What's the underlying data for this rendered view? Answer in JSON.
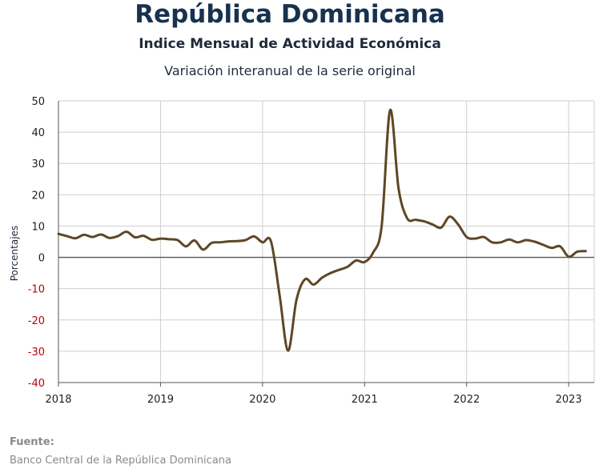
{
  "header": {
    "title": "República Dominicana",
    "subtitle": "Indice Mensual de  Actividad Económica",
    "subsubtitle": "Variación interanual de la serie original"
  },
  "source": {
    "label": "Fuente:",
    "text": "Banco Central de la República Dominicana"
  },
  "colors": {
    "line": "#5e4725",
    "grid": "#cfcfcf",
    "zero_line": "#555555",
    "negative_tick": "#c00000",
    "text": "#1f2a3a"
  },
  "chart_data": {
    "type": "line",
    "title": "Variación interanual de la serie original",
    "xlabel": "",
    "ylabel": "Porcentajes",
    "ylim": [
      -40,
      50
    ],
    "xlim": [
      2018.0,
      2023.25
    ],
    "yticks": [
      "50",
      "40",
      "30",
      "20",
      "10",
      "0",
      "-10",
      "-20",
      "-30",
      "-40"
    ],
    "xticks": [
      "2018",
      "2019",
      "2020",
      "2021",
      "2022",
      "2023"
    ],
    "grid": true,
    "series": [
      {
        "name": "",
        "x": [
          2018.0,
          2018.083,
          2018.167,
          2018.25,
          2018.333,
          2018.417,
          2018.5,
          2018.583,
          2018.667,
          2018.75,
          2018.833,
          2018.917,
          2019.0,
          2019.083,
          2019.167,
          2019.25,
          2019.333,
          2019.417,
          2019.5,
          2019.583,
          2019.667,
          2019.75,
          2019.833,
          2019.917,
          2020.0,
          2020.083,
          2020.167,
          2020.25,
          2020.333,
          2020.417,
          2020.5,
          2020.583,
          2020.667,
          2020.75,
          2020.833,
          2020.917,
          2021.0,
          2021.083,
          2021.167,
          2021.25,
          2021.333,
          2021.417,
          2021.5,
          2021.583,
          2021.667,
          2021.75,
          2021.833,
          2021.917,
          2022.0,
          2022.083,
          2022.167,
          2022.25,
          2022.333,
          2022.417,
          2022.5,
          2022.583,
          2022.667,
          2022.75,
          2022.833,
          2022.917,
          2023.0,
          2023.083,
          2023.167
        ],
        "values": [
          7.5,
          6.8,
          6.1,
          7.2,
          6.5,
          7.3,
          6.2,
          6.8,
          8.2,
          6.4,
          6.9,
          5.6,
          6.0,
          5.8,
          5.5,
          3.5,
          5.4,
          2.5,
          4.6,
          4.8,
          5.1,
          5.2,
          5.5,
          6.7,
          4.8,
          5.1,
          -12.0,
          -29.8,
          -13.5,
          -7.0,
          -8.7,
          -6.5,
          -5.0,
          -4.0,
          -3.0,
          -1.0,
          -1.5,
          1.5,
          10.0,
          47.0,
          22.0,
          12.5,
          12.0,
          11.5,
          10.5,
          9.5,
          13.0,
          10.5,
          6.5,
          6.0,
          6.5,
          4.8,
          4.8,
          5.7,
          4.8,
          5.5,
          5.0,
          4.0,
          3.0,
          3.5,
          0.2,
          1.8,
          2.0
        ]
      }
    ]
  }
}
